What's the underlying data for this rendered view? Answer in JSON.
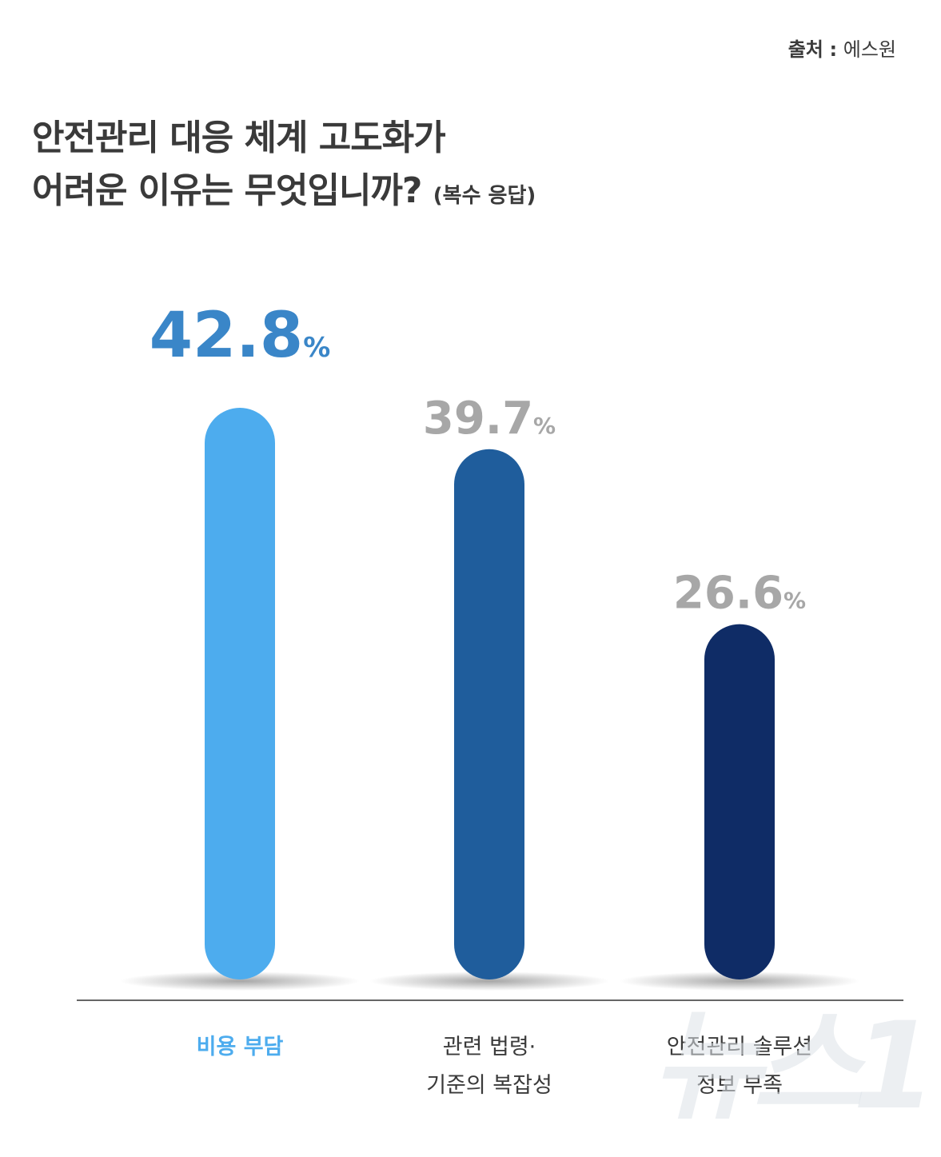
{
  "source": {
    "label": "출처",
    "separator": ":",
    "value": "에스원"
  },
  "title": {
    "line1": "안전관리 대응 체계 고도화가",
    "line2": "어려운 이유는 무엇입니까?",
    "note": "(복수 응답)"
  },
  "chart_data": {
    "type": "bar",
    "title": "안전관리 대응 체계 고도화가 어려운 이유는 무엇입니까?",
    "subtitle": "(복수 응답)",
    "categories": [
      "비용 부담",
      "관련 법령·\n기준의 복잡성",
      "안전관리 솔루션\n정보 부족"
    ],
    "values": [
      42.8,
      39.7,
      26.6
    ],
    "unit": "%",
    "ylim": [
      0,
      50
    ],
    "grid": false,
    "colors": {
      "bars": [
        "#4dacee",
        "#1f5d9c",
        "#0f2c66"
      ],
      "value_labels": [
        "#3a86c8",
        "#a7a7a7",
        "#a7a7a7"
      ],
      "category_labels": [
        "#4dacee",
        "#3a3a3a",
        "#3a3a3a"
      ]
    }
  },
  "watermark": "뉴스1"
}
